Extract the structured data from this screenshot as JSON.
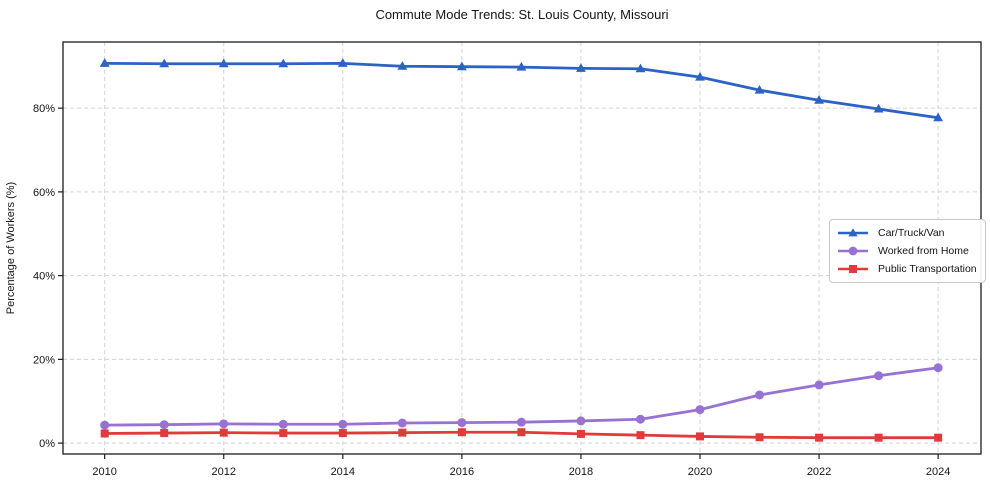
{
  "chart_data": {
    "type": "line",
    "title": "Commute Mode Trends: St. Louis County, Missouri",
    "xlabel": "",
    "ylabel": "Percentage of Workers (%)",
    "x": [
      2010,
      2011,
      2012,
      2013,
      2014,
      2015,
      2016,
      2017,
      2018,
      2019,
      2020,
      2021,
      2022,
      2023,
      2024
    ],
    "x_ticks": [
      2010,
      2012,
      2014,
      2016,
      2018,
      2020,
      2022,
      2024
    ],
    "y_ticks": [
      0,
      20,
      40,
      60,
      80
    ],
    "y_tick_suffix": "%",
    "xlim": [
      2009.3,
      2024.72
    ],
    "ylim": [
      -2.6,
      95.8
    ],
    "grid": true,
    "grid_style": "dashed",
    "legend_position": "center-right",
    "colors": {
      "grid": "#d3d3d3",
      "axis": "#1b1b1b",
      "text": "#151515",
      "background": "#ffffff"
    },
    "series": [
      {
        "name": "Car/Truck/Van",
        "color": "#2b62c5",
        "marker": "triangle",
        "values": [
          90.7,
          90.6,
          90.6,
          90.6,
          90.7,
          90.0,
          89.9,
          89.8,
          89.5,
          89.4,
          87.4,
          84.3,
          81.9,
          79.8,
          77.7
        ]
      },
      {
        "name": "Worked from Home",
        "color": "#9872d3",
        "marker": "circle",
        "values": [
          4.3,
          4.4,
          4.6,
          4.5,
          4.5,
          4.8,
          4.9,
          5.0,
          5.3,
          5.7,
          8.0,
          11.5,
          13.9,
          16.1,
          18.0
        ]
      },
      {
        "name": "Public Transportation",
        "color": "#e03a3a",
        "marker": "square",
        "values": [
          2.3,
          2.4,
          2.5,
          2.4,
          2.4,
          2.5,
          2.6,
          2.6,
          2.2,
          1.9,
          1.6,
          1.4,
          1.3,
          1.3,
          1.3
        ]
      }
    ]
  }
}
